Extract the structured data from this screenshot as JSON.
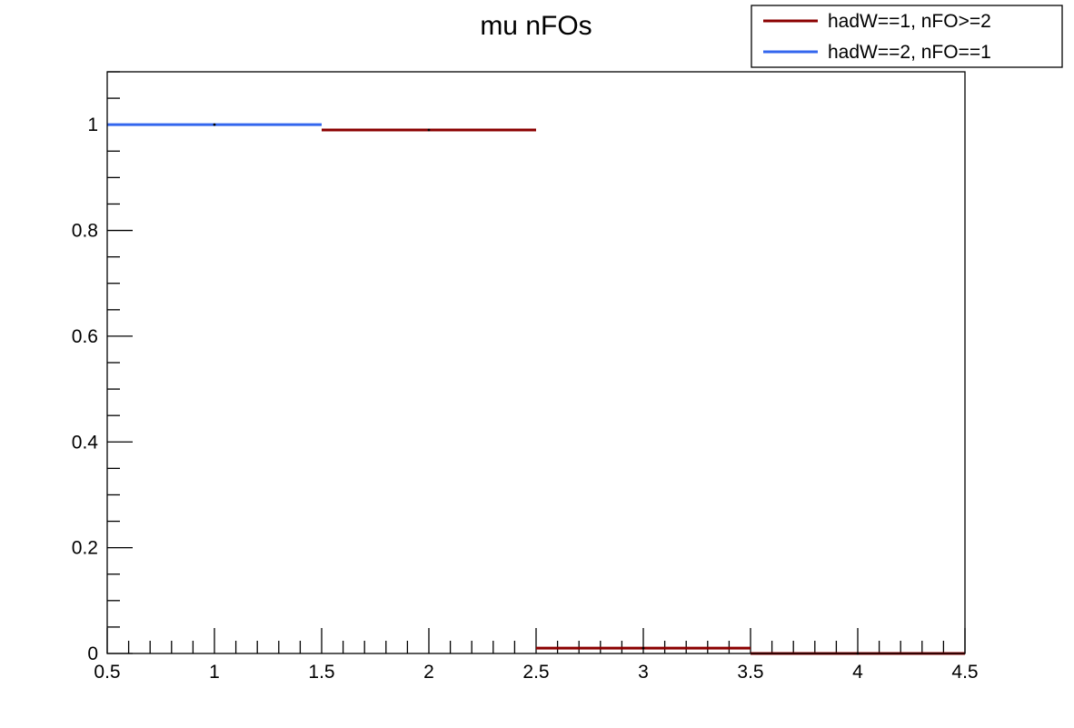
{
  "chart_data": {
    "type": "histogram",
    "title": "mu nFOs",
    "xlabel": "",
    "ylabel": "",
    "xlim": [
      0.5,
      4.5
    ],
    "ylim": [
      0,
      1.1
    ],
    "x_ticks": [
      0.5,
      1,
      1.5,
      2,
      2.5,
      3,
      3.5,
      4,
      4.5
    ],
    "y_ticks": [
      0,
      0.2,
      0.4,
      0.6,
      0.8,
      1
    ],
    "x_tick_labels": [
      "0.5",
      "1",
      "1.5",
      "2",
      "2.5",
      "3",
      "3.5",
      "4",
      "4.5"
    ],
    "y_tick_labels": [
      "0",
      "0.2",
      "0.4",
      "0.6",
      "0.8",
      "1"
    ],
    "grid": false,
    "legend_position": "top-right",
    "series": [
      {
        "name": "hadW==1, nFO>=2",
        "color": "#8b0000",
        "bins": [
          {
            "x0": 1.5,
            "x1": 2.5,
            "value": 0.99
          },
          {
            "x0": 2.5,
            "x1": 3.5,
            "value": 0.01
          },
          {
            "x0": 3.5,
            "x1": 4.5,
            "value": 0.0
          }
        ]
      },
      {
        "name": "hadW==2, nFO==1",
        "color": "#3366ee",
        "bins": [
          {
            "x0": 0.5,
            "x1": 1.5,
            "value": 1.0
          }
        ]
      }
    ]
  }
}
